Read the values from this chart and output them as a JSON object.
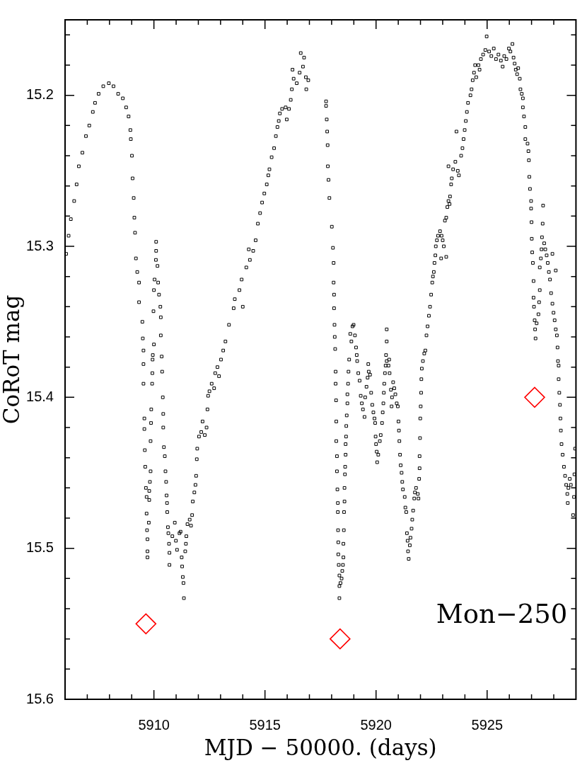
{
  "chart_data": {
    "type": "scatter",
    "xlabel": "MJD − 50000. (days)",
    "ylabel": "CoRoT mag",
    "annotations": [
      "Mon−250"
    ],
    "xlim": [
      5906,
      5929
    ],
    "ylim": [
      15.6,
      15.15
    ],
    "xticks": [
      {
        "value": 5907,
        "label": null
      },
      {
        "value": 5908,
        "label": null
      },
      {
        "value": 5909,
        "label": null
      },
      5910,
      {
        "value": 5911,
        "label": null
      },
      {
        "value": 5912,
        "label": null
      },
      {
        "value": 5913,
        "label": null
      },
      {
        "value": 5914,
        "label": null
      },
      5915,
      {
        "value": 5916,
        "label": null
      },
      {
        "value": 5917,
        "label": null
      },
      {
        "value": 5918,
        "label": null
      },
      {
        "value": 5919,
        "label": null
      },
      5920,
      {
        "value": 5921,
        "label": null
      },
      {
        "value": 5922,
        "label": null
      },
      {
        "value": 5923,
        "label": null
      },
      {
        "value": 5924,
        "label": null
      },
      5925,
      {
        "value": 5926,
        "label": null
      },
      {
        "value": 5927,
        "label": null
      },
      {
        "value": 5928,
        "label": null
      }
    ],
    "yticks": [
      {
        "value": 15.16,
        "label": null
      },
      {
        "value": 15.18,
        "label": null
      },
      15.2,
      {
        "value": 15.22,
        "label": null
      },
      {
        "value": 15.24,
        "label": null
      },
      {
        "value": 15.26,
        "label": null
      },
      {
        "value": 15.28,
        "label": null
      },
      15.3,
      {
        "value": 15.32,
        "label": null
      },
      {
        "value": 15.34,
        "label": null
      },
      {
        "value": 15.36,
        "label": null
      },
      {
        "value": 15.38,
        "label": null
      },
      15.4,
      {
        "value": 15.42,
        "label": null
      },
      {
        "value": 15.44,
        "label": null
      },
      {
        "value": 15.46,
        "label": null
      },
      {
        "value": 15.48,
        "label": null
      },
      15.5,
      {
        "value": 15.52,
        "label": null
      },
      {
        "value": 15.54,
        "label": null
      },
      {
        "value": 15.56,
        "label": null
      },
      {
        "value": 15.58,
        "label": null
      },
      15.6
    ],
    "grid": false,
    "legend": false,
    "series": [
      {
        "color": "#000000",
        "marker": "square",
        "x": [
          5906.05,
          5906.16,
          5906.26,
          5906.41,
          5906.52,
          5906.62,
          5906.78,
          5906.94,
          5907.09,
          5907.25,
          5907.35,
          5907.51,
          5907.72,
          5907.97,
          5908.18,
          5908.39,
          5908.6,
          5908.75,
          5908.86,
          5908.94,
          5908.96,
          5909.01,
          5909.04,
          5909.09,
          5909.12,
          5909.15,
          5909.19,
          5909.25,
          5909.33,
          5909.33,
          5909.48,
          5909.5,
          5909.53,
          5909.53,
          5909.53,
          5909.57,
          5909.57,
          5909.59,
          5909.61,
          5909.64,
          5909.67,
          5909.67,
          5909.69,
          5909.71,
          5909.71,
          5909.71,
          5909.77,
          5909.79,
          5909.79,
          5909.82,
          5909.85,
          5909.85,
          5909.87,
          5909.88,
          5909.92,
          5909.93,
          5909.94,
          5909.95,
          5910.0,
          5909.98,
          5910.0,
          5910.03,
          5910.09,
          5910.1,
          5910.1,
          5910.16,
          5910.19,
          5910.23,
          5910.29,
          5910.31,
          5910.31,
          5910.35,
          5910.37,
          5910.4,
          5910.42,
          5910.42,
          5910.45,
          5910.49,
          5910.52,
          5910.55,
          5910.57,
          5910.59,
          5910.6,
          5910.63,
          5910.65,
          5910.68,
          5910.7,
          5910.7,
          5910.83,
          5910.94,
          5910.99,
          5911.04,
          5911.15,
          5911.2,
          5911.25,
          5911.27,
          5911.3,
          5911.33,
          5911.35,
          5911.41,
          5911.44,
          5911.46,
          5911.51,
          5911.61,
          5911.67,
          5911.72,
          5911.75,
          5911.82,
          5911.87,
          5911.9,
          5911.93,
          5911.95,
          5912.03,
          5912.13,
          5912.19,
          5912.29,
          5912.37,
          5912.41,
          5912.44,
          5912.5,
          5912.6,
          5912.71,
          5912.76,
          5912.86,
          5912.93,
          5913.02,
          5913.12,
          5913.22,
          5913.38,
          5913.59,
          5913.64,
          5913.85,
          5914.0,
          5913.95,
          5914.16,
          5914.27,
          5914.32,
          5914.47,
          5914.58,
          5914.68,
          5914.78,
          5914.87,
          5914.97,
          5915.08,
          5915.15,
          5915.2,
          5915.3,
          5915.41,
          5915.49,
          5915.56,
          5915.62,
          5915.67,
          5915.77,
          5915.93,
          5915.98,
          5916.08,
          5916.16,
          5916.21,
          5916.24,
          5916.29,
          5916.43,
          5916.56,
          5916.61,
          5916.71,
          5916.76,
          5916.84,
          5916.86,
          5916.95,
          5917.75,
          5917.75,
          5917.78,
          5917.8,
          5917.82,
          5917.83,
          5917.86,
          5917.9,
          5918.01,
          5918.06,
          5918.09,
          5918.09,
          5918.11,
          5918.11,
          5918.13,
          5918.14,
          5918.16,
          5918.18,
          5918.18,
          5918.2,
          5918.21,
          5918.21,
          5918.24,
          5918.24,
          5918.26,
          5918.28,
          5918.28,
          5918.29,
          5918.3,
          5918.3,
          5918.32,
          5918.35,
          5918.35,
          5918.35,
          5918.4,
          5918.45,
          5918.48,
          5918.51,
          5918.53,
          5918.53,
          5918.55,
          5918.56,
          5918.58,
          5918.58,
          5918.6,
          5918.61,
          5918.63,
          5918.63,
          5918.65,
          5918.66,
          5918.68,
          5918.71,
          5918.71,
          5918.74,
          5918.76,
          5918.79,
          5918.84,
          5918.89,
          5918.94,
          5918.99,
          5919.05,
          5919.1,
          5919.13,
          5919.15,
          5919.2,
          5919.26,
          5919.31,
          5919.36,
          5919.41,
          5919.48,
          5919.51,
          5919.57,
          5919.62,
          5919.65,
          5919.67,
          5919.73,
          5919.78,
          5919.83,
          5919.88,
          5919.93,
          5919.96,
          5919.98,
          5920.0,
          5920.03,
          5920.05,
          5920.1,
          5920.17,
          5920.21,
          5920.27,
          5920.3,
          5920.33,
          5920.35,
          5920.37,
          5920.4,
          5920.43,
          5920.48,
          5920.48,
          5920.48,
          5920.45,
          5920.59,
          5920.56,
          5920.61,
          5920.67,
          5920.72,
          5920.7,
          5920.77,
          5920.82,
          5920.87,
          5920.93,
          5920.98,
          5921.01,
          5921.03,
          5921.05,
          5921.08,
          5921.11,
          5921.15,
          5921.18,
          5921.21,
          5921.29,
          5921.32,
          5921.36,
          5921.39,
          5921.42,
          5921.44,
          5921.47,
          5921.52,
          5921.55,
          5921.6,
          5921.63,
          5921.67,
          5921.72,
          5921.75,
          5921.8,
          5921.88,
          5921.91,
          5921.94,
          5921.96,
          5921.96,
          5921.98,
          5921.99,
          5922.01,
          5922.03,
          5922.04,
          5922.06,
          5922.11,
          5922.17,
          5922.22,
          5922.27,
          5922.32,
          5922.38,
          5922.43,
          5922.48,
          5922.53,
          5922.56,
          5922.6,
          5922.63,
          5922.67,
          5922.69,
          5922.74,
          5922.79,
          5922.88,
          5922.93,
          5922.95,
          5923.0,
          5923.05,
          5923.16,
          5923.1,
          5923.16,
          5923.21,
          5923.26,
          5923.31,
          5923.33,
          5923.38,
          5923.41,
          5923.26,
          5923.47,
          5923.57,
          5923.62,
          5923.68,
          5923.73,
          5923.83,
          5923.89,
          5923.94,
          5923.99,
          5924.04,
          5924.09,
          5924.14,
          5924.25,
          5924.3,
          5924.35,
          5924.41,
          5924.46,
          5924.51,
          5924.61,
          5924.66,
          5924.72,
          5924.82,
          5924.92,
          5924.98,
          5925.09,
          5925.19,
          5925.3,
          5925.4,
          5925.51,
          5925.62,
          5925.7,
          5925.77,
          5925.87,
          5925.98,
          5926.05,
          5926.14,
          5926.19,
          5926.24,
          5926.29,
          5926.35,
          5926.4,
          5926.47,
          5926.5,
          5926.56,
          5926.61,
          5926.61,
          5926.66,
          5926.72,
          5926.72,
          5926.82,
          5926.86,
          5926.88,
          5926.9,
          5926.93,
          5926.98,
          5926.98,
          5927.0,
          5927.01,
          5927.03,
          5927.06,
          5927.09,
          5927.09,
          5927.11,
          5927.14,
          5927.16,
          5927.18,
          5927.23,
          5927.31,
          5927.34,
          5927.37,
          5927.37,
          5927.42,
          5927.45,
          5927.47,
          5927.5,
          5927.52,
          5927.57,
          5927.62,
          5927.68,
          5927.73,
          5927.78,
          5927.83,
          5927.94,
          5928.09,
          5927.88,
          5927.94,
          5927.99,
          5928.04,
          5928.09,
          5928.14,
          5928.17,
          5928.19,
          5928.22,
          5928.22,
          5928.25,
          5928.28,
          5928.3,
          5928.32,
          5928.35,
          5928.4,
          5928.46,
          5928.51,
          5928.56,
          5928.61,
          5928.63,
          5928.66,
          5928.72,
          5928.77,
          5928.87,
          5928.91,
          5928.93,
          5928.96
        ],
        "values": [
          15.305,
          15.293,
          15.282,
          15.27,
          15.259,
          15.247,
          15.238,
          15.227,
          15.22,
          15.211,
          15.205,
          15.199,
          15.194,
          15.192,
          15.194,
          15.199,
          15.202,
          15.208,
          15.214,
          15.223,
          15.229,
          15.24,
          15.255,
          15.268,
          15.281,
          15.291,
          15.308,
          15.317,
          15.324,
          15.337,
          15.35,
          15.361,
          15.369,
          15.378,
          15.391,
          15.414,
          15.421,
          15.435,
          15.446,
          15.46,
          15.466,
          15.477,
          15.488,
          15.494,
          15.502,
          15.506,
          15.483,
          15.468,
          15.462,
          15.456,
          15.449,
          15.429,
          15.417,
          15.408,
          15.391,
          15.384,
          15.375,
          15.372,
          15.365,
          15.343,
          15.329,
          15.322,
          15.309,
          15.303,
          15.297,
          15.313,
          15.324,
          15.332,
          15.34,
          15.347,
          15.359,
          15.373,
          15.383,
          15.4,
          15.411,
          15.42,
          15.433,
          15.439,
          15.449,
          15.456,
          15.465,
          15.47,
          15.476,
          15.486,
          15.49,
          15.497,
          15.503,
          15.511,
          15.492,
          15.483,
          15.495,
          15.501,
          15.49,
          15.489,
          15.506,
          15.512,
          15.519,
          15.523,
          15.533,
          15.502,
          15.497,
          15.492,
          15.484,
          15.481,
          15.485,
          15.478,
          15.469,
          15.463,
          15.458,
          15.452,
          15.441,
          15.434,
          15.426,
          15.423,
          15.416,
          15.425,
          15.42,
          15.408,
          15.399,
          15.396,
          15.391,
          15.394,
          15.384,
          15.38,
          15.386,
          15.375,
          15.369,
          15.363,
          15.352,
          15.341,
          15.335,
          15.329,
          15.34,
          15.322,
          15.314,
          15.302,
          15.309,
          15.303,
          15.296,
          15.285,
          15.278,
          15.271,
          15.265,
          15.259,
          15.253,
          15.249,
          15.241,
          15.235,
          15.227,
          15.221,
          15.217,
          15.212,
          15.209,
          15.208,
          15.216,
          15.209,
          15.203,
          15.196,
          15.183,
          15.189,
          15.192,
          15.185,
          15.172,
          15.181,
          15.175,
          15.188,
          15.196,
          15.19,
          15.204,
          15.207,
          15.216,
          15.224,
          15.233,
          15.247,
          15.256,
          15.268,
          15.287,
          15.301,
          15.311,
          15.324,
          15.332,
          15.341,
          15.352,
          15.36,
          15.368,
          15.383,
          15.391,
          15.402,
          15.416,
          15.429,
          15.439,
          15.449,
          15.461,
          15.47,
          15.476,
          15.488,
          15.496,
          15.504,
          15.511,
          15.518,
          15.525,
          15.533,
          15.523,
          15.52,
          15.515,
          15.511,
          15.506,
          15.497,
          15.488,
          15.476,
          15.469,
          15.46,
          15.451,
          15.446,
          15.438,
          15.431,
          15.426,
          15.419,
          15.412,
          15.404,
          15.398,
          15.391,
          15.383,
          15.375,
          15.358,
          15.363,
          15.353,
          15.352,
          15.359,
          15.367,
          15.372,
          15.376,
          15.384,
          15.389,
          15.399,
          15.404,
          15.408,
          15.413,
          15.4,
          15.393,
          15.387,
          15.378,
          15.383,
          15.385,
          15.397,
          15.405,
          15.41,
          15.414,
          15.417,
          15.426,
          15.431,
          15.436,
          15.443,
          15.438,
          15.429,
          15.425,
          15.417,
          15.41,
          15.404,
          15.397,
          15.391,
          15.384,
          15.379,
          15.376,
          15.355,
          15.363,
          15.372,
          15.375,
          15.379,
          15.384,
          15.395,
          15.4,
          15.406,
          15.39,
          15.394,
          15.398,
          15.404,
          15.406,
          15.416,
          15.422,
          15.429,
          15.438,
          15.445,
          15.45,
          15.456,
          15.461,
          15.466,
          15.473,
          15.476,
          15.49,
          15.495,
          15.502,
          15.507,
          15.498,
          15.493,
          15.487,
          15.481,
          15.475,
          15.467,
          15.463,
          15.46,
          15.464,
          15.467,
          15.454,
          15.447,
          15.439,
          15.427,
          15.414,
          15.406,
          15.397,
          15.388,
          15.381,
          15.376,
          15.371,
          15.369,
          15.359,
          15.353,
          15.346,
          15.34,
          15.332,
          15.324,
          15.32,
          15.317,
          15.311,
          15.306,
          15.3,
          15.296,
          15.293,
          15.29,
          15.308,
          15.293,
          15.296,
          15.3,
          15.307,
          15.283,
          15.281,
          15.274,
          15.27,
          15.272,
          15.267,
          15.259,
          15.255,
          15.247,
          15.249,
          15.244,
          15.224,
          15.25,
          15.253,
          15.24,
          15.235,
          15.229,
          15.223,
          15.217,
          15.211,
          15.205,
          15.2,
          15.196,
          15.19,
          15.185,
          15.18,
          15.188,
          15.18,
          15.183,
          15.176,
          15.173,
          15.17,
          15.161,
          15.171,
          15.174,
          15.169,
          15.176,
          15.173,
          15.177,
          15.181,
          15.174,
          15.176,
          15.169,
          15.171,
          15.166,
          15.175,
          15.179,
          15.183,
          15.186,
          15.182,
          15.189,
          15.196,
          15.199,
          15.202,
          15.208,
          15.214,
          15.221,
          15.229,
          15.232,
          15.237,
          15.243,
          15.254,
          15.262,
          15.27,
          15.275,
          15.284,
          15.295,
          15.304,
          15.311,
          15.323,
          15.334,
          15.34,
          15.349,
          15.355,
          15.361,
          15.351,
          15.345,
          15.337,
          15.329,
          15.314,
          15.308,
          15.302,
          15.294,
          15.285,
          15.273,
          15.298,
          15.302,
          15.306,
          15.311,
          15.317,
          15.322,
          15.305,
          15.316,
          15.331,
          15.338,
          15.344,
          15.349,
          15.355,
          15.359,
          15.367,
          15.376,
          15.379,
          15.388,
          15.397,
          15.405,
          15.414,
          15.422,
          15.431,
          15.438,
          15.446,
          15.452,
          15.458,
          15.464,
          15.47,
          15.46,
          15.454,
          15.458,
          15.478,
          15.466,
          15.451,
          15.434
        ]
      },
      {
        "color": "#ff0000",
        "marker": "diamond",
        "x": [
          5909.64,
          5918.38,
          5927.14
        ],
        "values": [
          15.55,
          15.56,
          15.4
        ]
      }
    ]
  }
}
